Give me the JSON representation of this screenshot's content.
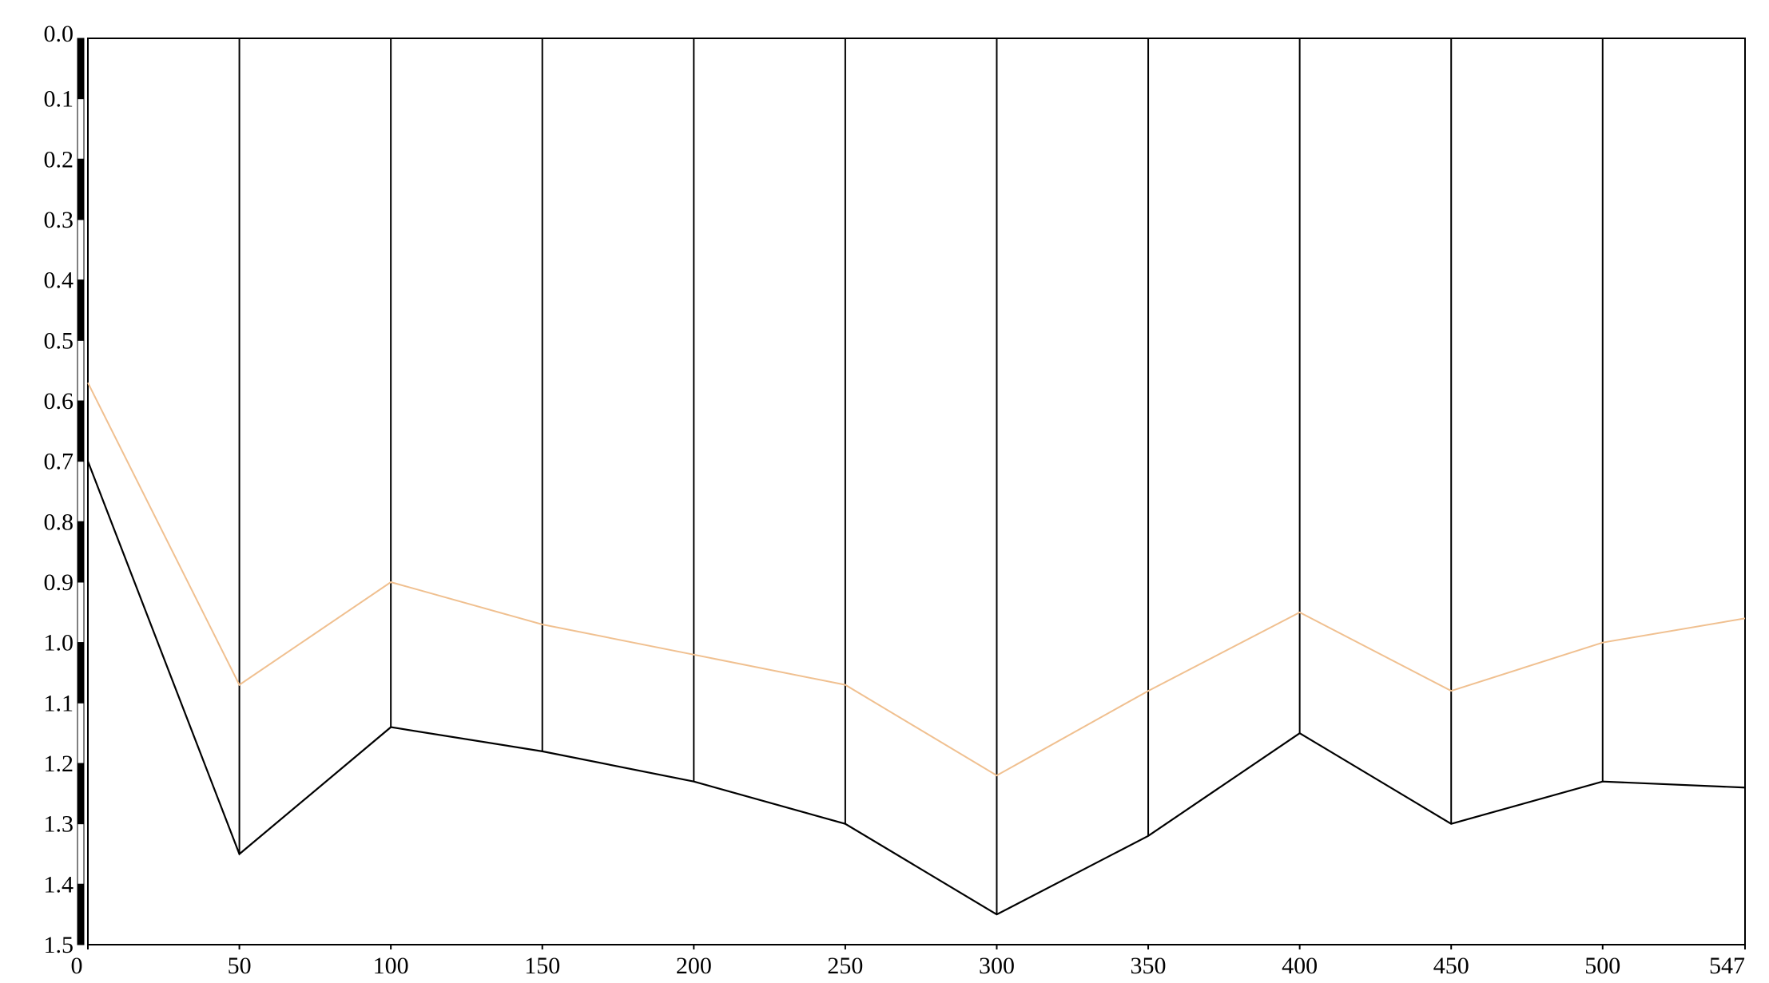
{
  "chart_data": {
    "type": "line",
    "title": "",
    "xlabel": "",
    "ylabel": "",
    "xlim": [
      0,
      547
    ],
    "ylim": [
      0.0,
      1.5
    ],
    "y_inverted": true,
    "x_ticks": [
      0,
      50,
      100,
      150,
      200,
      250,
      300,
      350,
      400,
      450,
      500,
      547
    ],
    "x_tick_labels": [
      "0",
      "50",
      "100",
      "150",
      "200",
      "250",
      "300",
      "350",
      "400",
      "450",
      "500",
      "547"
    ],
    "y_ticks": [
      0.0,
      0.1,
      0.2,
      0.3,
      0.4,
      0.5,
      0.6,
      0.7,
      0.8,
      0.9,
      1.0,
      1.1,
      1.2,
      1.3,
      1.4,
      1.5
    ],
    "y_tick_labels": [
      "0.0",
      "0.1",
      "0.2",
      "0.3",
      "0.4",
      "0.5",
      "0.6",
      "0.7",
      "0.8",
      "0.9",
      "1.0",
      "1.1",
      "1.2",
      "1.3",
      "1.4",
      "1.5"
    ],
    "x": [
      0,
      50,
      100,
      150,
      200,
      250,
      300,
      350,
      400,
      450,
      500,
      547
    ],
    "series": [
      {
        "color": "#f0c090",
        "values": [
          0.57,
          1.07,
          0.9,
          0.97,
          1.02,
          1.07,
          1.22,
          1.08,
          0.95,
          1.08,
          1.0,
          0.96
        ]
      },
      {
        "color": "#000000",
        "values": [
          0.7,
          1.35,
          1.14,
          1.18,
          1.23,
          1.3,
          1.45,
          1.32,
          1.15,
          1.3,
          1.23,
          1.24
        ]
      }
    ],
    "vertical_drop_lines": true,
    "grid": false,
    "legend": "none"
  }
}
